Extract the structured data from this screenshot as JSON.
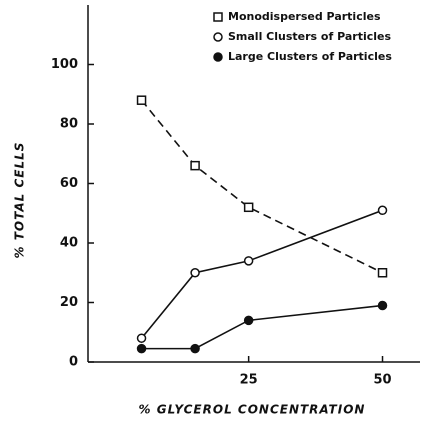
{
  "chart_data": {
    "type": "line",
    "xlabel": "% GLYCEROL CONCENTRATION",
    "ylabel": "% TOTAL CELLS",
    "x": [
      5,
      15,
      25,
      50
    ],
    "series": [
      {
        "name": "Monodispersed Particles",
        "color": "#111111",
        "marker": "open-square",
        "linestyle": "dashed",
        "values": [
          88,
          66,
          52,
          30
        ]
      },
      {
        "name": "Small Clusters of Particles",
        "color": "#111111",
        "marker": "open-circle",
        "linestyle": "solid",
        "values": [
          8,
          30,
          34,
          51
        ]
      },
      {
        "name": "Large Clusters of Particles",
        "color": "#111111",
        "marker": "filled-circle",
        "linestyle": "solid",
        "values": [
          4.5,
          4.5,
          14,
          19
        ]
      }
    ],
    "xlim": [
      -5,
      57
    ],
    "xticks": [
      25,
      50
    ],
    "ylim": [
      0,
      120
    ],
    "yticks": [
      0,
      20,
      40,
      60,
      80,
      100
    ],
    "legend": "upper right",
    "grid": false
  }
}
